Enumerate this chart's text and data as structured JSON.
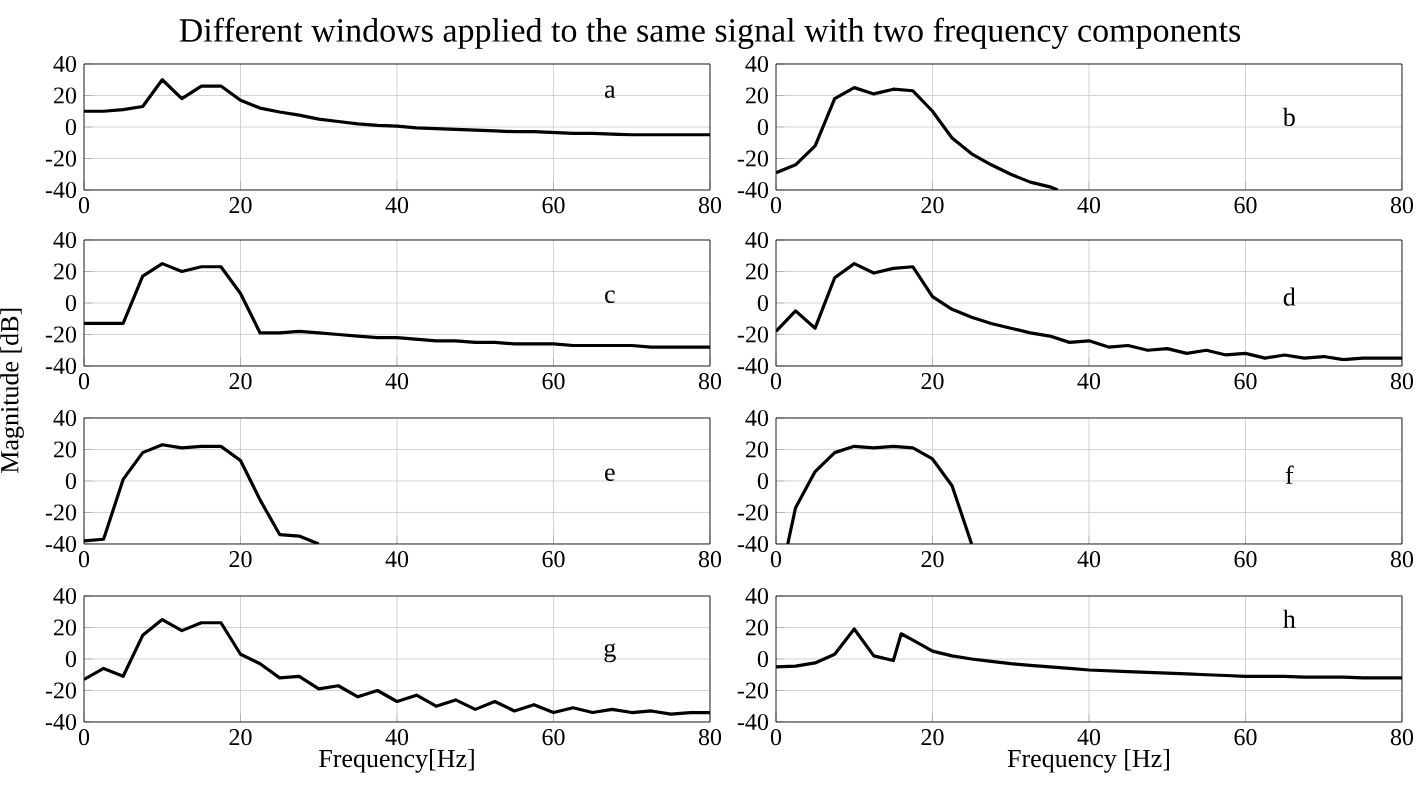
{
  "chart_data": [
    {
      "type": "line",
      "title": "Different windows applied to the same signal with two frequency components",
      "annotations": [
        "a"
      ],
      "xlim": [
        0,
        80
      ],
      "ylim": [
        -40,
        40
      ],
      "xticks": [
        0,
        20,
        40,
        60,
        80
      ],
      "yticks": [
        -40,
        -20,
        0,
        20,
        40
      ],
      "grid": true,
      "series": [
        {
          "color": "#000000",
          "x": [
            0,
            2.5,
            5,
            7.5,
            10,
            12.5,
            15,
            17.5,
            20,
            22.5,
            25,
            27.5,
            30,
            32.5,
            35,
            37.5,
            40,
            42.5,
            45,
            47.5,
            50,
            52.5,
            55,
            57.5,
            60,
            62.5,
            65,
            67.5,
            70,
            72.5,
            75,
            77.5,
            80
          ],
          "values": [
            10,
            10,
            11,
            13,
            30,
            18,
            26,
            26,
            17,
            12,
            9.5,
            7.5,
            5,
            3.5,
            2,
            1,
            0.5,
            -0.5,
            -1,
            -1.5,
            -2,
            -2.5,
            -3,
            -3,
            -3.5,
            -4,
            -4,
            -4.5,
            -5,
            -5,
            -5,
            -5,
            -5
          ]
        }
      ]
    },
    {
      "type": "line",
      "annotations": [
        "b"
      ],
      "xlim": [
        0,
        80
      ],
      "ylim": [
        -40,
        40
      ],
      "xticks": [
        0,
        20,
        40,
        60,
        80
      ],
      "yticks": [
        -40,
        -20,
        0,
        20,
        40
      ],
      "grid": true,
      "series": [
        {
          "color": "#000000",
          "x": [
            0,
            2.5,
            5,
            7.5,
            10,
            12.5,
            15,
            17.5,
            20,
            22.5,
            25,
            27.5,
            30,
            32.5,
            35,
            36
          ],
          "values": [
            -29,
            -24,
            -12,
            18,
            25,
            21,
            24,
            23,
            10,
            -7,
            -17,
            -24,
            -30,
            -35,
            -38,
            -40
          ]
        }
      ]
    },
    {
      "type": "line",
      "annotations": [
        "c"
      ],
      "xlim": [
        0,
        80
      ],
      "ylim": [
        -40,
        40
      ],
      "xticks": [
        0,
        20,
        40,
        60,
        80
      ],
      "yticks": [
        -40,
        -20,
        0,
        20,
        40
      ],
      "grid": true,
      "series": [
        {
          "color": "#000000",
          "x": [
            0,
            2.5,
            5,
            7.5,
            10,
            12.5,
            15,
            17.5,
            20,
            22.5,
            25,
            27.5,
            30,
            32.5,
            35,
            37.5,
            40,
            42.5,
            45,
            47.5,
            50,
            52.5,
            55,
            57.5,
            60,
            62.5,
            65,
            67.5,
            70,
            72.5,
            75,
            77.5,
            80
          ],
          "values": [
            -13,
            -13,
            -13,
            17,
            25,
            20,
            23,
            23,
            6,
            -19,
            -19,
            -18,
            -19,
            -20,
            -21,
            -22,
            -22,
            -23,
            -24,
            -24,
            -25,
            -25,
            -26,
            -26,
            -26,
            -27,
            -27,
            -27,
            -27,
            -28,
            -28,
            -28,
            -28
          ]
        }
      ]
    },
    {
      "type": "line",
      "annotations": [
        "d"
      ],
      "xlim": [
        0,
        80
      ],
      "ylim": [
        -40,
        40
      ],
      "xticks": [
        0,
        20,
        40,
        60,
        80
      ],
      "yticks": [
        -40,
        -20,
        0,
        20,
        40
      ],
      "grid": true,
      "series": [
        {
          "color": "#000000",
          "x": [
            0,
            2.5,
            5,
            7.5,
            10,
            12.5,
            15,
            17.5,
            20,
            22.5,
            25,
            27.5,
            30,
            32.5,
            35,
            37.5,
            40,
            42.5,
            45,
            47.5,
            50,
            52.5,
            55,
            57.5,
            60,
            62.5,
            65,
            67.5,
            70,
            72.5,
            75,
            77.5,
            80
          ],
          "values": [
            -18,
            -5,
            -16,
            16,
            25,
            19,
            22,
            23,
            4,
            -4,
            -9,
            -13,
            -16,
            -19,
            -21,
            -25,
            -24,
            -28,
            -27,
            -30,
            -29,
            -32,
            -30,
            -33,
            -32,
            -35,
            -33,
            -35,
            -34,
            -36,
            -35,
            -35,
            -35
          ]
        }
      ]
    },
    {
      "type": "line",
      "ylabel": "Magnitude [dB]",
      "annotations": [
        "e"
      ],
      "xlim": [
        0,
        80
      ],
      "ylim": [
        -40,
        40
      ],
      "xticks": [
        0,
        20,
        40,
        60,
        80
      ],
      "yticks": [
        -40,
        -20,
        0,
        20,
        40
      ],
      "grid": true,
      "series": [
        {
          "color": "#000000",
          "x": [
            0,
            2.5,
            5,
            7.5,
            10,
            12.5,
            15,
            17.5,
            20,
            22.5,
            25,
            27.5,
            30
          ],
          "values": [
            -38,
            -37,
            1,
            18,
            23,
            21,
            22,
            22,
            13,
            -12,
            -34,
            -35,
            -40
          ]
        }
      ]
    },
    {
      "type": "line",
      "annotations": [
        "f"
      ],
      "xlim": [
        0,
        80
      ],
      "ylim": [
        -40,
        40
      ],
      "xticks": [
        0,
        20,
        40,
        60,
        80
      ],
      "yticks": [
        -40,
        -20,
        0,
        20,
        40
      ],
      "grid": true,
      "series": [
        {
          "color": "#000000",
          "x": [
            1.5,
            2.5,
            5,
            7.5,
            10,
            12.5,
            15,
            17.5,
            20,
            22.5,
            25
          ],
          "values": [
            -40,
            -17,
            6,
            18,
            22,
            21,
            22,
            21,
            14,
            -3,
            -40
          ]
        }
      ]
    },
    {
      "type": "line",
      "xlabel": "Frequency[Hz]",
      "annotations": [
        "g"
      ],
      "xlim": [
        0,
        80
      ],
      "ylim": [
        -40,
        40
      ],
      "xticks": [
        0,
        20,
        40,
        60,
        80
      ],
      "yticks": [
        -40,
        -20,
        0,
        20,
        40
      ],
      "grid": true,
      "series": [
        {
          "color": "#000000",
          "x": [
            0,
            2.5,
            5,
            7.5,
            10,
            12.5,
            15,
            17.5,
            20,
            22.5,
            25,
            27.5,
            30,
            32.5,
            35,
            37.5,
            40,
            42.5,
            45,
            47.5,
            50,
            52.5,
            55,
            57.5,
            60,
            62.5,
            65,
            67.5,
            70,
            72.5,
            75,
            77.5,
            80
          ],
          "values": [
            -13,
            -6,
            -11,
            15,
            25,
            18,
            23,
            23,
            3,
            -3,
            -12,
            -11,
            -19,
            -17,
            -24,
            -20,
            -27,
            -23,
            -30,
            -26,
            -32,
            -27,
            -33,
            -29,
            -34,
            -31,
            -34,
            -32,
            -34,
            -33,
            -35,
            -34,
            -34
          ]
        }
      ]
    },
    {
      "type": "line",
      "xlabel": "Frequency [Hz]",
      "annotations": [
        "h"
      ],
      "xlim": [
        0,
        80
      ],
      "ylim": [
        -40,
        40
      ],
      "xticks": [
        0,
        20,
        40,
        60,
        80
      ],
      "yticks": [
        -40,
        -20,
        0,
        20,
        40
      ],
      "grid": true,
      "series": [
        {
          "color": "#000000",
          "x": [
            0,
            2.5,
            5,
            7.5,
            10,
            12.5,
            15,
            16,
            17.5,
            20,
            22.5,
            25,
            27.5,
            30,
            32.5,
            35,
            37.5,
            40,
            42.5,
            45,
            47.5,
            50,
            52.5,
            55,
            57.5,
            60,
            62.5,
            65,
            67.5,
            70,
            72.5,
            75,
            77.5,
            80
          ],
          "values": [
            -5,
            -4.5,
            -2.5,
            3,
            19,
            2,
            -1,
            16,
            12,
            5,
            2,
            0,
            -1.5,
            -3,
            -4,
            -5,
            -6,
            -7,
            -7.5,
            -8,
            -8.5,
            -9,
            -9.5,
            -10,
            -10.5,
            -11,
            -11,
            -11,
            -11.5,
            -11.5,
            -11.5,
            -12,
            -12,
            -12
          ]
        }
      ]
    }
  ]
}
